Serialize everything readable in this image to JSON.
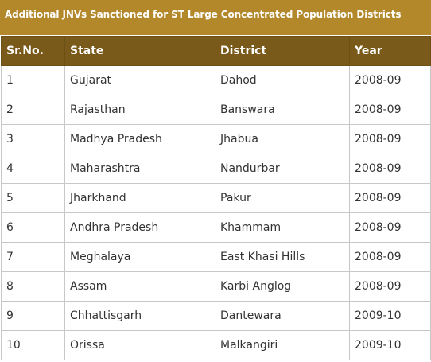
{
  "caption": "Additional JNVs Sanctioned for ST Large Concentrated Population Districts",
  "headers": [
    "Sr.No.",
    "State",
    "District",
    "Year"
  ],
  "rows": [
    [
      "1",
      "Gujarat",
      "Dahod",
      "2008-09"
    ],
    [
      "2",
      "Rajasthan",
      "Banswara",
      "2008-09"
    ],
    [
      "3",
      "Madhya Pradesh",
      "Jhabua",
      "2008-09"
    ],
    [
      "4",
      "Maharashtra",
      "Nandurbar",
      "2008-09"
    ],
    [
      "5",
      "Jharkhand",
      "Pakur",
      "2008-09"
    ],
    [
      "6",
      "Andhra Pradesh",
      "Khammam",
      "2008-09"
    ],
    [
      "7",
      "Meghalaya",
      "East Khasi Hills",
      "2008-09"
    ],
    [
      "8",
      "Assam",
      "Karbi Anglog",
      "2008-09"
    ],
    [
      "9",
      "Chhattisgarh",
      "Dantewara",
      "2009-10"
    ],
    [
      "10",
      "Orissa",
      "Malkangiri",
      "2009-10"
    ]
  ],
  "colors": {
    "caption_bg": "#b3882a",
    "header_bg": "#7a5a1a",
    "border": "#c8c8c8"
  }
}
